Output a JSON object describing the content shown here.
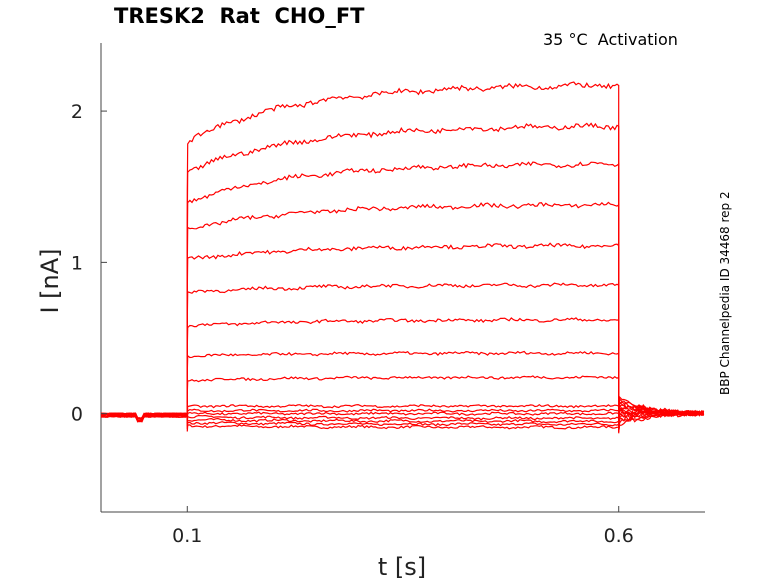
{
  "chart_data": {
    "type": "line",
    "title": "TRESK2  Rat  CHO_FT",
    "subtitle": "35 °C  Activation",
    "side_note": "BBP Channelpedia ID 34468 rep 2",
    "xlabel": "t [s]",
    "ylabel": "I [nA]",
    "xlim": [
      0.0,
      0.7
    ],
    "ylim": [
      -0.65,
      2.45
    ],
    "xticks": [
      0.1,
      0.6
    ],
    "yticks": [
      0,
      1,
      2
    ],
    "grid": false,
    "legend": "none",
    "series_color": "#ff0000",
    "pulse": {
      "start": 0.1,
      "end": 0.6
    },
    "series": [
      {
        "values": [
          -0.02,
          -0.08,
          -0.09,
          -0.07
        ]
      },
      {
        "values": [
          -0.02,
          -0.06,
          -0.07,
          -0.05
        ]
      },
      {
        "values": [
          -0.02,
          -0.04,
          -0.05,
          -0.04
        ]
      },
      {
        "values": [
          -0.02,
          -0.02,
          -0.03,
          -0.02
        ]
      },
      {
        "values": [
          -0.01,
          0.0,
          0.0,
          -0.01
        ]
      },
      {
        "values": [
          -0.01,
          0.02,
          0.02,
          0.0
        ]
      },
      {
        "values": [
          -0.01,
          0.05,
          0.05,
          0.01
        ]
      },
      {
        "values": [
          -0.01,
          0.22,
          0.24,
          0.02
        ]
      },
      {
        "values": [
          0.0,
          0.38,
          0.4,
          0.03
        ]
      },
      {
        "values": [
          0.0,
          0.58,
          0.62,
          0.04
        ]
      },
      {
        "values": [
          0.0,
          0.8,
          0.85,
          0.05
        ]
      },
      {
        "values": [
          0.0,
          1.02,
          1.11,
          0.06
        ]
      },
      {
        "values": [
          0.0,
          1.22,
          1.38,
          0.07
        ]
      },
      {
        "values": [
          0.0,
          1.4,
          1.65,
          0.08
        ]
      },
      {
        "values": [
          0.0,
          1.6,
          1.9,
          0.09
        ]
      },
      {
        "values": [
          0.0,
          1.8,
          2.17,
          0.1
        ]
      }
    ]
  }
}
